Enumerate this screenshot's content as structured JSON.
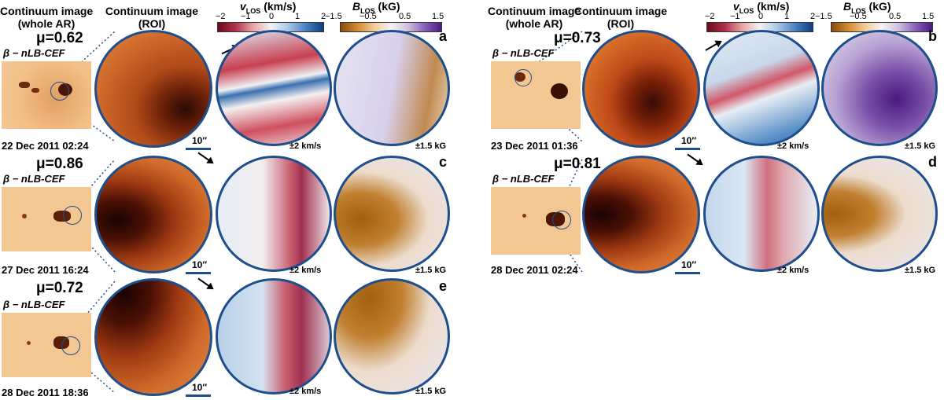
{
  "header": {
    "whole_ar_line1": "Continuum image",
    "whole_ar_line2": "(whole AR)",
    "roi_line1": "Continuum image",
    "roi_line2": "(ROI)",
    "vlos_label": "v",
    "vlos_sub": "LOS",
    "vlos_unit": " (km/s)",
    "blos_label": "B",
    "blos_sub": "LOS",
    "blos_unit": " (kG)",
    "vlos_ticks": [
      "−2",
      "−1",
      "0",
      "1",
      "2"
    ],
    "blos_ticks": [
      "−1.5",
      "−0.5",
      "0.5",
      "1.5"
    ]
  },
  "colors": {
    "disc_border": "#1f4e8c",
    "vlos_neg": "#7a0a1e",
    "vlos_pos": "#0d4a8c",
    "blos_neg": "#b56b10",
    "blos_pos": "#4a1a80"
  },
  "panels": [
    {
      "letter": "a",
      "mu": "μ=0.62",
      "method": "β − nLB-CEF",
      "date": "22 Dec 2011 02:24",
      "scale": "10′′",
      "vlos_range": "±2 km/s",
      "blos_range": "±1.5 kG"
    },
    {
      "letter": "b",
      "mu": "μ=0.73",
      "method": "β − nLB-CEF",
      "date": "23 Dec 2011 01:36",
      "scale": "10′′",
      "vlos_range": "±2 km/s",
      "blos_range": "±1.5 kG"
    },
    {
      "letter": "c",
      "mu": "μ=0.86",
      "method": "β − nLB-CEF",
      "date": "27 Dec 2011 16:24",
      "scale": "10′′",
      "vlos_range": "±2 km/s",
      "blos_range": "±1.5 kG"
    },
    {
      "letter": "d",
      "mu": "μ=0.81",
      "method": "β − nLB-CEF",
      "date": "28 Dec 2011 02:24",
      "scale": "10′′",
      "vlos_range": "±2 km/s",
      "blos_range": "±1.5 kG"
    },
    {
      "letter": "e",
      "mu": "μ=0.72",
      "method": "β − nLB-CEF",
      "date": "28 Dec 2011 18:36",
      "scale": "10′′",
      "vlos_range": "±2 km/s",
      "blos_range": "±1.5 kG"
    }
  ]
}
